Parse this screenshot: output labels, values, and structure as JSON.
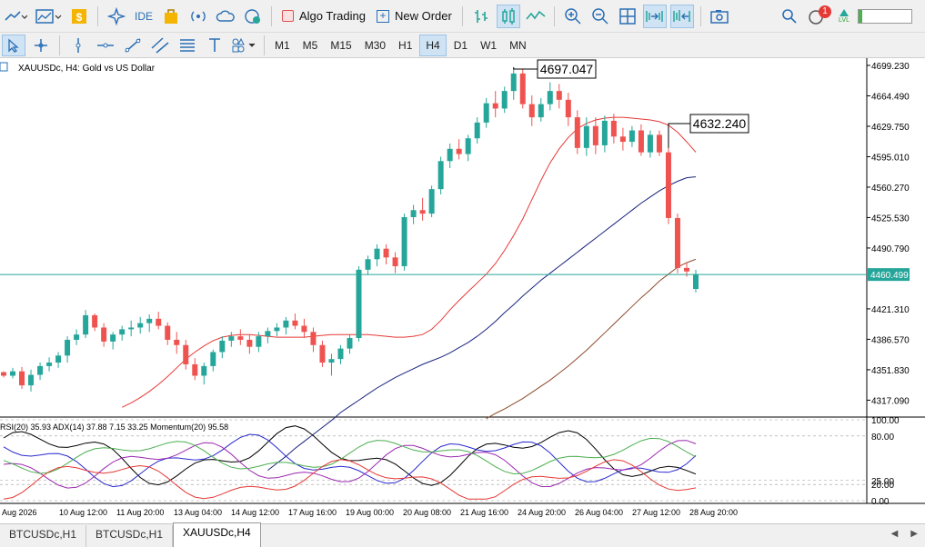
{
  "toolbar": {
    "ide_label": "IDE",
    "algo_trading_label": "Algo Trading",
    "new_order_label": "New Order",
    "notification_count": "1",
    "lvl_label": "LVL"
  },
  "timeframes": [
    "M1",
    "M5",
    "M15",
    "M30",
    "H1",
    "H4",
    "D1",
    "W1",
    "MN"
  ],
  "active_timeframe": "H4",
  "chart": {
    "symbol_label": "XAUUSDc, H4:  Gold vs US Dollar",
    "high_label": "4697.047",
    "mid_label": "4632.240",
    "current_price": "4460.499",
    "price_ticks": [
      "4699.230",
      "4664.490",
      "4629.750",
      "4595.010",
      "4560.270",
      "4525.530",
      "4490.790",
      "4421.310",
      "4386.570",
      "4351.830",
      "4317.090"
    ],
    "price_min": 4297.8,
    "price_max": 4707.5,
    "time_labels": [
      "Aug 2026",
      "10 Aug 12:00",
      "11 Aug 20:00",
      "13 Aug 04:00",
      "14 Aug 12:00",
      "17 Aug 16:00",
      "19 Aug 00:00",
      "20 Aug 08:00",
      "21 Aug 16:00",
      "24 Aug 20:00",
      "26 Aug 04:00",
      "27 Aug 12:00",
      "28 Aug 20:00"
    ],
    "colors": {
      "bull": "#26a69a",
      "bear": "#ef5350",
      "ma_fast": "#e53935",
      "ma_mid": "#1a237e",
      "ma_slow": "#8d4b2b",
      "price_line": "#26a69a"
    },
    "ma_fast": [
      4309,
      4314,
      4320,
      4327,
      4335,
      4344,
      4354,
      4364,
      4372,
      4379,
      4385,
      4389,
      4391,
      4392,
      4392,
      4391,
      4390,
      4389,
      4389,
      4389,
      4389,
      4390,
      4391,
      4392,
      4392,
      4392,
      4392,
      4392,
      4391,
      4390,
      4389,
      4389,
      4390,
      4392,
      4398,
      4408,
      4420,
      4431,
      4441,
      4451,
      4461,
      4473,
      4488,
      4505,
      4524,
      4546,
      4568,
      4588,
      4604,
      4617,
      4627,
      4633,
      4637,
      4639,
      4640,
      4640,
      4639,
      4638,
      4637,
      4635,
      4631,
      4623,
      4612,
      4600
    ],
    "ma_mid": [
      4237,
      4245,
      4253,
      4262,
      4270,
      4278,
      4286,
      4294,
      4303,
      4310,
      4317,
      4324,
      4331,
      4337,
      4343,
      4348,
      4353,
      4358,
      4362,
      4366,
      4371,
      4377,
      4383,
      4390,
      4398,
      4407,
      4417,
      4426,
      4436,
      4445,
      4454,
      4462,
      4470,
      4478,
      4486,
      4494,
      4502,
      4510,
      4518,
      4526,
      4534,
      4542,
      4549,
      4556,
      4562,
      4567,
      4571,
      4572
    ],
    "ma_slow": [
      4296,
      4302,
      4307,
      4313,
      4319,
      4326,
      4333,
      4340,
      4348,
      4356,
      4365,
      4374,
      4384,
      4394,
      4404,
      4414,
      4424,
      4434,
      4443,
      4453,
      4461,
      4469,
      4474,
      4478
    ],
    "candles": [
      [
        4349,
        4350,
        4343,
        4345
      ],
      [
        4345,
        4354,
        4342,
        4350
      ],
      [
        4350,
        4355,
        4330,
        4334
      ],
      [
        4334,
        4352,
        4327,
        4346
      ],
      [
        4346,
        4360,
        4340,
        4356
      ],
      [
        4356,
        4366,
        4350,
        4360
      ],
      [
        4360,
        4372,
        4354,
        4368
      ],
      [
        4368,
        4390,
        4360,
        4386
      ],
      [
        4386,
        4398,
        4380,
        4392
      ],
      [
        4392,
        4420,
        4388,
        4414
      ],
      [
        4414,
        4416,
        4396,
        4400
      ],
      [
        4400,
        4405,
        4378,
        4384
      ],
      [
        4384,
        4395,
        4375,
        4392
      ],
      [
        4392,
        4402,
        4385,
        4398
      ],
      [
        4398,
        4408,
        4390,
        4400
      ],
      [
        4400,
        4412,
        4393,
        4405
      ],
      [
        4405,
        4415,
        4395,
        4410
      ],
      [
        4410,
        4418,
        4398,
        4402
      ],
      [
        4402,
        4406,
        4380,
        4386
      ],
      [
        4386,
        4395,
        4370,
        4380
      ],
      [
        4380,
        4386,
        4352,
        4358
      ],
      [
        4358,
        4365,
        4340,
        4345
      ],
      [
        4345,
        4360,
        4335,
        4356
      ],
      [
        4356,
        4375,
        4350,
        4372
      ],
      [
        4372,
        4390,
        4365,
        4385
      ],
      [
        4385,
        4395,
        4378,
        4390
      ],
      [
        4390,
        4398,
        4380,
        4386
      ],
      [
        4386,
        4392,
        4370,
        4378
      ],
      [
        4378,
        4395,
        4372,
        4390
      ],
      [
        4390,
        4400,
        4382,
        4396
      ],
      [
        4396,
        4405,
        4390,
        4400
      ],
      [
        4400,
        4412,
        4392,
        4408
      ],
      [
        4408,
        4416,
        4398,
        4402
      ],
      [
        4402,
        4410,
        4388,
        4395
      ],
      [
        4395,
        4400,
        4372,
        4380
      ],
      [
        4380,
        4385,
        4355,
        4360
      ],
      [
        4360,
        4370,
        4345,
        4364
      ],
      [
        4364,
        4380,
        4358,
        4376
      ],
      [
        4376,
        4392,
        4370,
        4388
      ],
      [
        4388,
        4470,
        4384,
        4466
      ],
      [
        4466,
        4482,
        4460,
        4478
      ],
      [
        4478,
        4495,
        4470,
        4490
      ],
      [
        4490,
        4495,
        4472,
        4480
      ],
      [
        4480,
        4486,
        4462,
        4470
      ],
      [
        4470,
        4530,
        4465,
        4526
      ],
      [
        4526,
        4540,
        4518,
        4534
      ],
      [
        4534,
        4548,
        4522,
        4530
      ],
      [
        4530,
        4562,
        4526,
        4558
      ],
      [
        4558,
        4595,
        4552,
        4590
      ],
      [
        4590,
        4610,
        4582,
        4604
      ],
      [
        4604,
        4615,
        4592,
        4598
      ],
      [
        4598,
        4620,
        4590,
        4616
      ],
      [
        4616,
        4640,
        4610,
        4634
      ],
      [
        4634,
        4662,
        4628,
        4656
      ],
      [
        4656,
        4670,
        4640,
        4650
      ],
      [
        4650,
        4675,
        4645,
        4670
      ],
      [
        4670,
        4697,
        4660,
        4690
      ],
      [
        4690,
        4695,
        4650,
        4655
      ],
      [
        4655,
        4665,
        4630,
        4640
      ],
      [
        4640,
        4662,
        4635,
        4655
      ],
      [
        4655,
        4680,
        4648,
        4670
      ],
      [
        4670,
        4678,
        4650,
        4660
      ],
      [
        4660,
        4668,
        4630,
        4640
      ],
      [
        4640,
        4648,
        4598,
        4605
      ],
      [
        4605,
        4640,
        4596,
        4630
      ],
      [
        4630,
        4640,
        4598,
        4608
      ],
      [
        4608,
        4642,
        4600,
        4636
      ],
      [
        4636,
        4644,
        4610,
        4618
      ],
      [
        4618,
        4628,
        4602,
        4612
      ],
      [
        4612,
        4630,
        4606,
        4625
      ],
      [
        4625,
        4632,
        4596,
        4600
      ],
      [
        4600,
        4625,
        4594,
        4620
      ],
      [
        4620,
        4625,
        4596,
        4600
      ],
      [
        4600,
        4605,
        4518,
        4525
      ],
      [
        4525,
        4530,
        4462,
        4468
      ],
      [
        4468,
        4474,
        4458,
        4464
      ],
      [
        4444,
        4466,
        4440,
        4461
      ]
    ],
    "indicator_label": "RSI(20) 35.93 ADX(14) 37.88 7.15 33.25 Momentum(20) 95.58",
    "indicator_ticks": [
      "100.00",
      "80.00",
      "25.00",
      "20.00",
      "0.00"
    ]
  },
  "tabs": [
    "BTCUSDc,H1",
    "BTCUSDc,H1",
    "XAUUSDc,H4"
  ],
  "active_tab": "XAUUSDc,H4"
}
